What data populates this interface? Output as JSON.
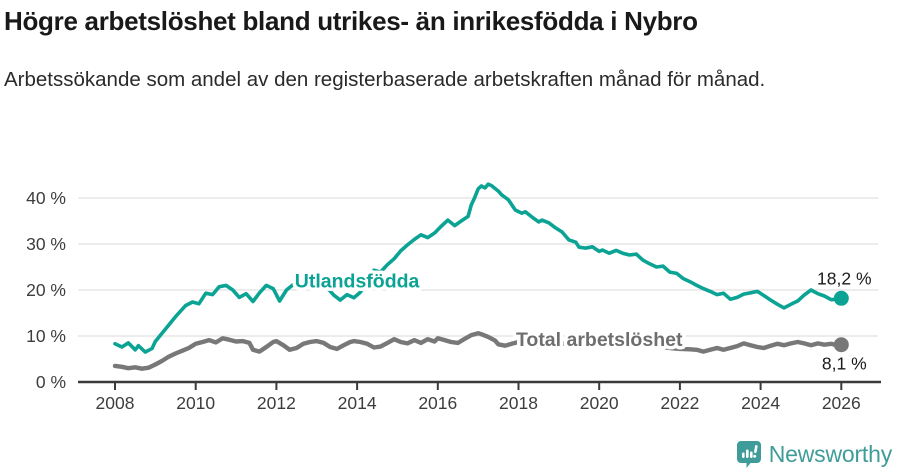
{
  "header": {
    "title": "Högre arbetslöshet bland utrikes- än inrikesfödda i Nybro",
    "subtitle": "Arbetssökande som andel av den registerbaserade arbetskraften månad för månad."
  },
  "footer": {
    "brand": "Newsworthy"
  },
  "colors": {
    "foreign_born_line": "#0ba394",
    "total_line": "#787878",
    "foreign_born_label": "#0ba394",
    "total_label": "#6e6e6e",
    "gridline": "#e0e0e0",
    "axis": "#3a3a3a",
    "axis_text": "#3d3d3d",
    "value_label_text": "#1a1a1a",
    "logo_teal": "#3f9c98",
    "background": "#ffffff"
  },
  "chart_data": {
    "type": "line",
    "title": "Högre arbetslöshet bland utrikes- än inrikesfödda i Nybro",
    "subtitle": "Arbetssökande som andel av den registerbaserade arbetskraften månad för månad.",
    "x_axis": {
      "tick_years": [
        2008,
        2010,
        2012,
        2014,
        2016,
        2018,
        2020,
        2022,
        2024,
        2026
      ],
      "range": [
        2008,
        2026
      ]
    },
    "y_axis": {
      "tick_values": [
        0,
        10,
        20,
        30,
        40
      ],
      "tick_labels": [
        "0 %",
        "10 %",
        "20 %",
        "30 %",
        "40 %"
      ],
      "range": [
        0,
        45
      ],
      "grid": true
    },
    "legend_position": "inline-labels",
    "series": [
      {
        "name": "Utlandsfödda",
        "color": "#0ba394",
        "stroke_width": 3.6,
        "end_label": "18,2 %",
        "end_value": 18.2,
        "end_label_pos": "above",
        "label_at": [
          2014.0,
          21.9
        ],
        "points": [
          [
            2008.0,
            8.3
          ],
          [
            2008.17,
            7.6
          ],
          [
            2008.33,
            8.5
          ],
          [
            2008.5,
            7.0
          ],
          [
            2008.58,
            7.9
          ],
          [
            2008.75,
            6.5
          ],
          [
            2008.92,
            7.3
          ],
          [
            2009.0,
            8.8
          ],
          [
            2009.25,
            11.5
          ],
          [
            2009.5,
            14.2
          ],
          [
            2009.75,
            16.6
          ],
          [
            2009.92,
            17.4
          ],
          [
            2010.08,
            17.0
          ],
          [
            2010.25,
            19.3
          ],
          [
            2010.42,
            19.0
          ],
          [
            2010.58,
            20.7
          ],
          [
            2010.75,
            21.0
          ],
          [
            2010.92,
            20.0
          ],
          [
            2011.08,
            18.4
          ],
          [
            2011.25,
            19.2
          ],
          [
            2011.42,
            17.5
          ],
          [
            2011.58,
            19.4
          ],
          [
            2011.75,
            21.0
          ],
          [
            2011.92,
            20.3
          ],
          [
            2012.08,
            17.6
          ],
          [
            2012.25,
            20.0
          ],
          [
            2012.42,
            21.2
          ],
          [
            2012.58,
            20.6
          ],
          [
            2012.75,
            21.0
          ],
          [
            2012.92,
            20.2
          ],
          [
            2013.08,
            21.4
          ],
          [
            2013.25,
            20.6
          ],
          [
            2013.42,
            18.9
          ],
          [
            2013.58,
            17.8
          ],
          [
            2013.75,
            19.0
          ],
          [
            2013.92,
            18.3
          ],
          [
            2014.08,
            19.5
          ],
          [
            2014.25,
            22.0
          ],
          [
            2014.42,
            24.3
          ],
          [
            2014.58,
            23.9
          ],
          [
            2014.75,
            25.5
          ],
          [
            2014.92,
            26.8
          ],
          [
            2015.08,
            28.5
          ],
          [
            2015.25,
            29.8
          ],
          [
            2015.42,
            31.0
          ],
          [
            2015.58,
            32.0
          ],
          [
            2015.75,
            31.4
          ],
          [
            2015.92,
            32.4
          ],
          [
            2016.08,
            33.8
          ],
          [
            2016.25,
            35.2
          ],
          [
            2016.42,
            34.0
          ],
          [
            2016.58,
            35.0
          ],
          [
            2016.75,
            36.0
          ],
          [
            2016.83,
            38.5
          ],
          [
            2016.92,
            40.2
          ],
          [
            2017.0,
            42.0
          ],
          [
            2017.08,
            42.6
          ],
          [
            2017.17,
            42.2
          ],
          [
            2017.25,
            43.0
          ],
          [
            2017.33,
            42.7
          ],
          [
            2017.5,
            41.5
          ],
          [
            2017.58,
            40.7
          ],
          [
            2017.75,
            39.6
          ],
          [
            2017.92,
            37.4
          ],
          [
            2018.08,
            36.7
          ],
          [
            2018.17,
            37.0
          ],
          [
            2018.33,
            35.9
          ],
          [
            2018.5,
            34.8
          ],
          [
            2018.58,
            35.2
          ],
          [
            2018.75,
            34.6
          ],
          [
            2018.92,
            33.5
          ],
          [
            2019.08,
            32.6
          ],
          [
            2019.25,
            30.9
          ],
          [
            2019.42,
            30.4
          ],
          [
            2019.5,
            29.3
          ],
          [
            2019.67,
            29.1
          ],
          [
            2019.83,
            29.4
          ],
          [
            2020.0,
            28.4
          ],
          [
            2020.08,
            28.7
          ],
          [
            2020.25,
            28.0
          ],
          [
            2020.42,
            28.6
          ],
          [
            2020.58,
            28.0
          ],
          [
            2020.75,
            27.6
          ],
          [
            2020.92,
            27.8
          ],
          [
            2021.08,
            26.5
          ],
          [
            2021.25,
            25.7
          ],
          [
            2021.42,
            25.0
          ],
          [
            2021.58,
            25.2
          ],
          [
            2021.75,
            23.9
          ],
          [
            2021.92,
            23.6
          ],
          [
            2022.08,
            22.5
          ],
          [
            2022.25,
            21.8
          ],
          [
            2022.42,
            21.0
          ],
          [
            2022.58,
            20.3
          ],
          [
            2022.75,
            19.7
          ],
          [
            2022.92,
            19.0
          ],
          [
            2023.08,
            19.3
          ],
          [
            2023.25,
            18.0
          ],
          [
            2023.42,
            18.4
          ],
          [
            2023.58,
            19.1
          ],
          [
            2023.75,
            19.4
          ],
          [
            2023.92,
            19.7
          ],
          [
            2024.08,
            18.8
          ],
          [
            2024.25,
            17.8
          ],
          [
            2024.42,
            16.9
          ],
          [
            2024.58,
            16.1
          ],
          [
            2024.75,
            16.9
          ],
          [
            2024.92,
            17.6
          ],
          [
            2025.08,
            18.9
          ],
          [
            2025.25,
            20.0
          ],
          [
            2025.42,
            19.2
          ],
          [
            2025.58,
            18.7
          ],
          [
            2025.75,
            17.9
          ],
          [
            2025.92,
            18.0
          ],
          [
            2026.0,
            18.2
          ]
        ]
      },
      {
        "name": "Total arbetslöshet",
        "color": "#787878",
        "stroke_width": 4.4,
        "end_label": "8,1 %",
        "end_value": 8.1,
        "end_label_pos": "below",
        "label_at": [
          2020.0,
          9.1
        ],
        "points": [
          [
            2008.0,
            3.5
          ],
          [
            2008.17,
            3.3
          ],
          [
            2008.33,
            3.0
          ],
          [
            2008.5,
            3.2
          ],
          [
            2008.67,
            2.9
          ],
          [
            2008.83,
            3.1
          ],
          [
            2009.0,
            3.8
          ],
          [
            2009.17,
            4.6
          ],
          [
            2009.33,
            5.5
          ],
          [
            2009.5,
            6.2
          ],
          [
            2009.67,
            6.8
          ],
          [
            2009.83,
            7.4
          ],
          [
            2010.0,
            8.3
          ],
          [
            2010.17,
            8.7
          ],
          [
            2010.33,
            9.1
          ],
          [
            2010.5,
            8.6
          ],
          [
            2010.67,
            9.5
          ],
          [
            2010.83,
            9.2
          ],
          [
            2011.0,
            8.8
          ],
          [
            2011.17,
            8.9
          ],
          [
            2011.33,
            8.5
          ],
          [
            2011.42,
            7.0
          ],
          [
            2011.58,
            6.6
          ],
          [
            2011.75,
            7.6
          ],
          [
            2011.92,
            8.7
          ],
          [
            2012.0,
            8.9
          ],
          [
            2012.17,
            8.0
          ],
          [
            2012.33,
            7.0
          ],
          [
            2012.5,
            7.4
          ],
          [
            2012.67,
            8.3
          ],
          [
            2012.83,
            8.7
          ],
          [
            2013.0,
            8.9
          ],
          [
            2013.17,
            8.5
          ],
          [
            2013.33,
            7.6
          ],
          [
            2013.5,
            7.2
          ],
          [
            2013.67,
            8.0
          ],
          [
            2013.83,
            8.7
          ],
          [
            2013.92,
            8.9
          ],
          [
            2014.08,
            8.7
          ],
          [
            2014.25,
            8.3
          ],
          [
            2014.42,
            7.5
          ],
          [
            2014.58,
            7.7
          ],
          [
            2014.75,
            8.5
          ],
          [
            2014.92,
            9.3
          ],
          [
            2015.08,
            8.7
          ],
          [
            2015.25,
            8.4
          ],
          [
            2015.42,
            9.1
          ],
          [
            2015.58,
            8.5
          ],
          [
            2015.75,
            9.3
          ],
          [
            2015.92,
            8.8
          ],
          [
            2016.0,
            9.5
          ],
          [
            2016.17,
            9.1
          ],
          [
            2016.33,
            8.7
          ],
          [
            2016.5,
            8.5
          ],
          [
            2016.67,
            9.4
          ],
          [
            2016.83,
            10.2
          ],
          [
            2017.0,
            10.6
          ],
          [
            2017.08,
            10.4
          ],
          [
            2017.25,
            9.8
          ],
          [
            2017.42,
            9.0
          ],
          [
            2017.5,
            8.2
          ],
          [
            2017.67,
            7.9
          ],
          [
            2017.83,
            8.3
          ],
          [
            2018.0,
            8.7
          ],
          [
            2018.25,
            8.1
          ],
          [
            2018.5,
            7.8
          ],
          [
            2018.75,
            8.3
          ],
          [
            2019.0,
            8.6
          ],
          [
            2019.25,
            8.1
          ],
          [
            2019.5,
            7.8
          ],
          [
            2019.75,
            8.2
          ],
          [
            2020.0,
            8.8
          ],
          [
            2020.25,
            9.3
          ],
          [
            2020.5,
            9.5
          ],
          [
            2020.75,
            9.0
          ],
          [
            2021.0,
            8.6
          ],
          [
            2021.25,
            8.1
          ],
          [
            2021.5,
            7.7
          ],
          [
            2021.75,
            7.4
          ],
          [
            2022.0,
            7.2
          ],
          [
            2022.25,
            7.1
          ],
          [
            2022.42,
            7.0
          ],
          [
            2022.58,
            6.6
          ],
          [
            2022.75,
            7.0
          ],
          [
            2022.92,
            7.4
          ],
          [
            2023.08,
            7.0
          ],
          [
            2023.25,
            7.4
          ],
          [
            2023.42,
            7.8
          ],
          [
            2023.58,
            8.4
          ],
          [
            2023.75,
            8.0
          ],
          [
            2023.92,
            7.6
          ],
          [
            2024.08,
            7.4
          ],
          [
            2024.25,
            7.9
          ],
          [
            2024.42,
            8.3
          ],
          [
            2024.58,
            8.0
          ],
          [
            2024.75,
            8.4
          ],
          [
            2024.92,
            8.7
          ],
          [
            2025.08,
            8.4
          ],
          [
            2025.25,
            8.0
          ],
          [
            2025.42,
            8.4
          ],
          [
            2025.58,
            8.1
          ],
          [
            2025.75,
            8.3
          ],
          [
            2025.92,
            7.9
          ],
          [
            2026.0,
            8.1
          ]
        ]
      }
    ]
  }
}
